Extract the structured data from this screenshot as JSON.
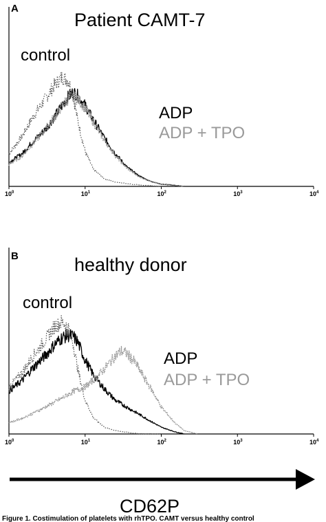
{
  "colors": {
    "black": "#000000",
    "gray": "#9a9a9a",
    "dotted": "#555555"
  },
  "xlabel": "CD62P",
  "caption": "Figure 1. Costimulation of platelets with rhTPO. CAMT versus healthy control",
  "chart_data": [
    {
      "type": "line",
      "panel": "A",
      "title": "Patient CAMT-7",
      "xscale": "log",
      "xlim": [
        1,
        10000
      ],
      "x_ticks": [
        {
          "base": "10",
          "exp": "0",
          "value": 1
        },
        {
          "base": "10",
          "exp": "1",
          "value": 10
        },
        {
          "base": "10",
          "exp": "2",
          "value": 100
        },
        {
          "base": "10",
          "exp": "3",
          "value": 1000
        },
        {
          "base": "10",
          "exp": "4",
          "value": 10000
        }
      ],
      "ylim": [
        0,
        1
      ],
      "series": [
        {
          "name": "control",
          "style": "dotted",
          "x": [
            1,
            1.5,
            2,
            3,
            4,
            5,
            6,
            7,
            8,
            10,
            13,
            18,
            25,
            40,
            60,
            100
          ],
          "y": [
            0.3,
            0.46,
            0.62,
            0.8,
            0.93,
            1.0,
            0.97,
            0.82,
            0.6,
            0.32,
            0.15,
            0.07,
            0.04,
            0.02,
            0.01,
            0.0
          ]
        },
        {
          "name": "ADP",
          "style": "solid",
          "x": [
            1,
            1.5,
            2,
            3,
            4,
            5,
            6,
            7,
            8,
            10,
            13,
            18,
            25,
            35,
            50,
            70,
            100,
            150,
            200
          ],
          "y": [
            0.22,
            0.3,
            0.4,
            0.52,
            0.64,
            0.74,
            0.82,
            0.86,
            0.83,
            0.74,
            0.6,
            0.44,
            0.3,
            0.18,
            0.1,
            0.05,
            0.02,
            0.01,
            0.0
          ]
        },
        {
          "name": "ADP + TPO",
          "style": "gray",
          "x": [
            1,
            1.5,
            2,
            3,
            4,
            5,
            6,
            7,
            8,
            10,
            13,
            18,
            25,
            35,
            50,
            70,
            100,
            150,
            200
          ],
          "y": [
            0.2,
            0.28,
            0.38,
            0.52,
            0.64,
            0.74,
            0.8,
            0.82,
            0.8,
            0.72,
            0.58,
            0.42,
            0.28,
            0.17,
            0.09,
            0.05,
            0.02,
            0.01,
            0.0
          ]
        }
      ],
      "annotations": [
        {
          "text": "control",
          "series": "control"
        },
        {
          "text": "ADP",
          "series": "ADP"
        },
        {
          "text": "ADP + TPO",
          "series": "ADP + TPO"
        }
      ]
    },
    {
      "type": "line",
      "panel": "B",
      "title": "healthy donor",
      "xscale": "log",
      "xlim": [
        1,
        10000
      ],
      "x_ticks": [
        {
          "base": "10",
          "exp": "0",
          "value": 1
        },
        {
          "base": "10",
          "exp": "1",
          "value": 10
        },
        {
          "base": "10",
          "exp": "2",
          "value": 100
        },
        {
          "base": "10",
          "exp": "3",
          "value": 1000
        },
        {
          "base": "10",
          "exp": "4",
          "value": 10000
        }
      ],
      "ylim": [
        0,
        1
      ],
      "series": [
        {
          "name": "control",
          "style": "dotted",
          "x": [
            1,
            1.5,
            2,
            3,
            4,
            5,
            6,
            7,
            8,
            10,
            13,
            18,
            25,
            40,
            60,
            100
          ],
          "y": [
            0.42,
            0.55,
            0.68,
            0.84,
            0.96,
            1.0,
            0.95,
            0.8,
            0.58,
            0.3,
            0.14,
            0.06,
            0.03,
            0.01,
            0.0,
            0.0
          ]
        },
        {
          "name": "ADP",
          "style": "solid",
          "x": [
            1,
            1.5,
            2,
            3,
            4,
            5,
            6,
            7,
            8,
            10,
            13,
            18,
            25,
            35,
            50,
            70,
            100,
            150,
            200
          ],
          "y": [
            0.38,
            0.48,
            0.58,
            0.7,
            0.8,
            0.86,
            0.88,
            0.87,
            0.82,
            0.66,
            0.52,
            0.4,
            0.3,
            0.24,
            0.18,
            0.12,
            0.06,
            0.02,
            0.0
          ]
        },
        {
          "name": "ADP + TPO",
          "style": "gray",
          "x": [
            1,
            1.5,
            2,
            3,
            5,
            7,
            10,
            14,
            20,
            25,
            30,
            35,
            45,
            60,
            80,
            100,
            150,
            200,
            300
          ],
          "y": [
            0.1,
            0.14,
            0.18,
            0.24,
            0.32,
            0.38,
            0.42,
            0.5,
            0.62,
            0.7,
            0.74,
            0.72,
            0.64,
            0.5,
            0.36,
            0.24,
            0.1,
            0.03,
            0.0
          ]
        }
      ],
      "annotations": [
        {
          "text": "control",
          "series": "control"
        },
        {
          "text": "ADP",
          "series": "ADP"
        },
        {
          "text": "ADP + TPO",
          "series": "ADP + TPO"
        }
      ]
    }
  ]
}
